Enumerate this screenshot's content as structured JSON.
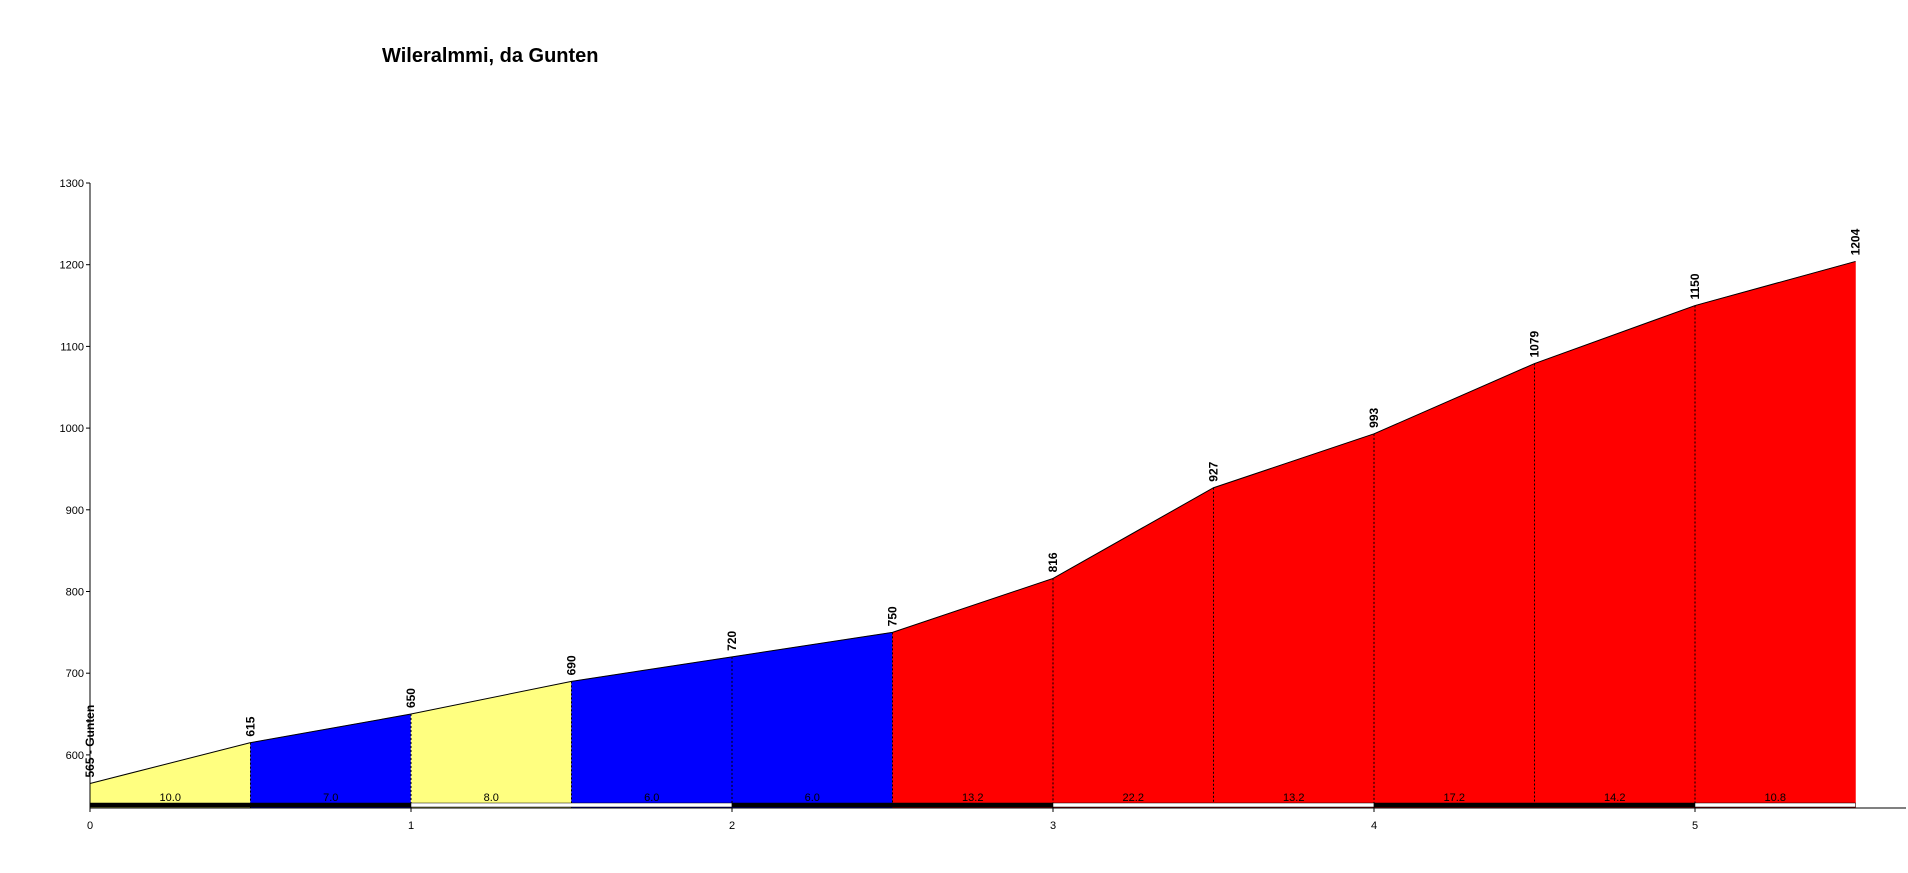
{
  "chart_data": {
    "type": "area",
    "title": "Wileralmmi, da Gunten",
    "xlabel": "",
    "ylabel": "",
    "xlim": [
      0,
      5.5
    ],
    "ylim": [
      535,
      1300
    ],
    "x_ticks": [
      0,
      1,
      2,
      3,
      4,
      5
    ],
    "y_ticks": [
      600,
      700,
      800,
      900,
      1000,
      1100,
      1200,
      1300
    ],
    "grid": false,
    "start_label": "565 - Gunten",
    "points": [
      {
        "x": 0,
        "elevation": 565
      },
      {
        "x": 0.5,
        "elevation": 615
      },
      {
        "x": 1,
        "elevation": 650
      },
      {
        "x": 1.5,
        "elevation": 690
      },
      {
        "x": 2,
        "elevation": 720
      },
      {
        "x": 2.5,
        "elevation": 750
      },
      {
        "x": 3,
        "elevation": 816
      },
      {
        "x": 3.5,
        "elevation": 927
      },
      {
        "x": 4,
        "elevation": 993
      },
      {
        "x": 4.5,
        "elevation": 1079
      },
      {
        "x": 5,
        "elevation": 1150
      },
      {
        "x": 5.5,
        "elevation": 1204
      }
    ],
    "segments": [
      {
        "from": 0,
        "to": 0.5,
        "gradient": "10.0",
        "color": "#ffff80"
      },
      {
        "from": 0.5,
        "to": 1,
        "gradient": "7.0",
        "color": "#0000ff"
      },
      {
        "from": 1,
        "to": 1.5,
        "gradient": "8.0",
        "color": "#ffff80"
      },
      {
        "from": 1.5,
        "to": 2,
        "gradient": "6.0",
        "color": "#0000ff"
      },
      {
        "from": 2,
        "to": 2.5,
        "gradient": "6.0",
        "color": "#0000ff"
      },
      {
        "from": 2.5,
        "to": 3,
        "gradient": "13.2",
        "color": "#ff0000"
      },
      {
        "from": 3,
        "to": 3.5,
        "gradient": "22.2",
        "color": "#ff0000"
      },
      {
        "from": 3.5,
        "to": 4,
        "gradient": "13.2",
        "color": "#ff0000"
      },
      {
        "from": 4,
        "to": 4.5,
        "gradient": "17.2",
        "color": "#ff0000"
      },
      {
        "from": 4.5,
        "to": 5,
        "gradient": "14.2",
        "color": "#ff0000"
      },
      {
        "from": 5,
        "to": 5.5,
        "gradient": "10.8",
        "color": "#ff0000"
      }
    ]
  }
}
